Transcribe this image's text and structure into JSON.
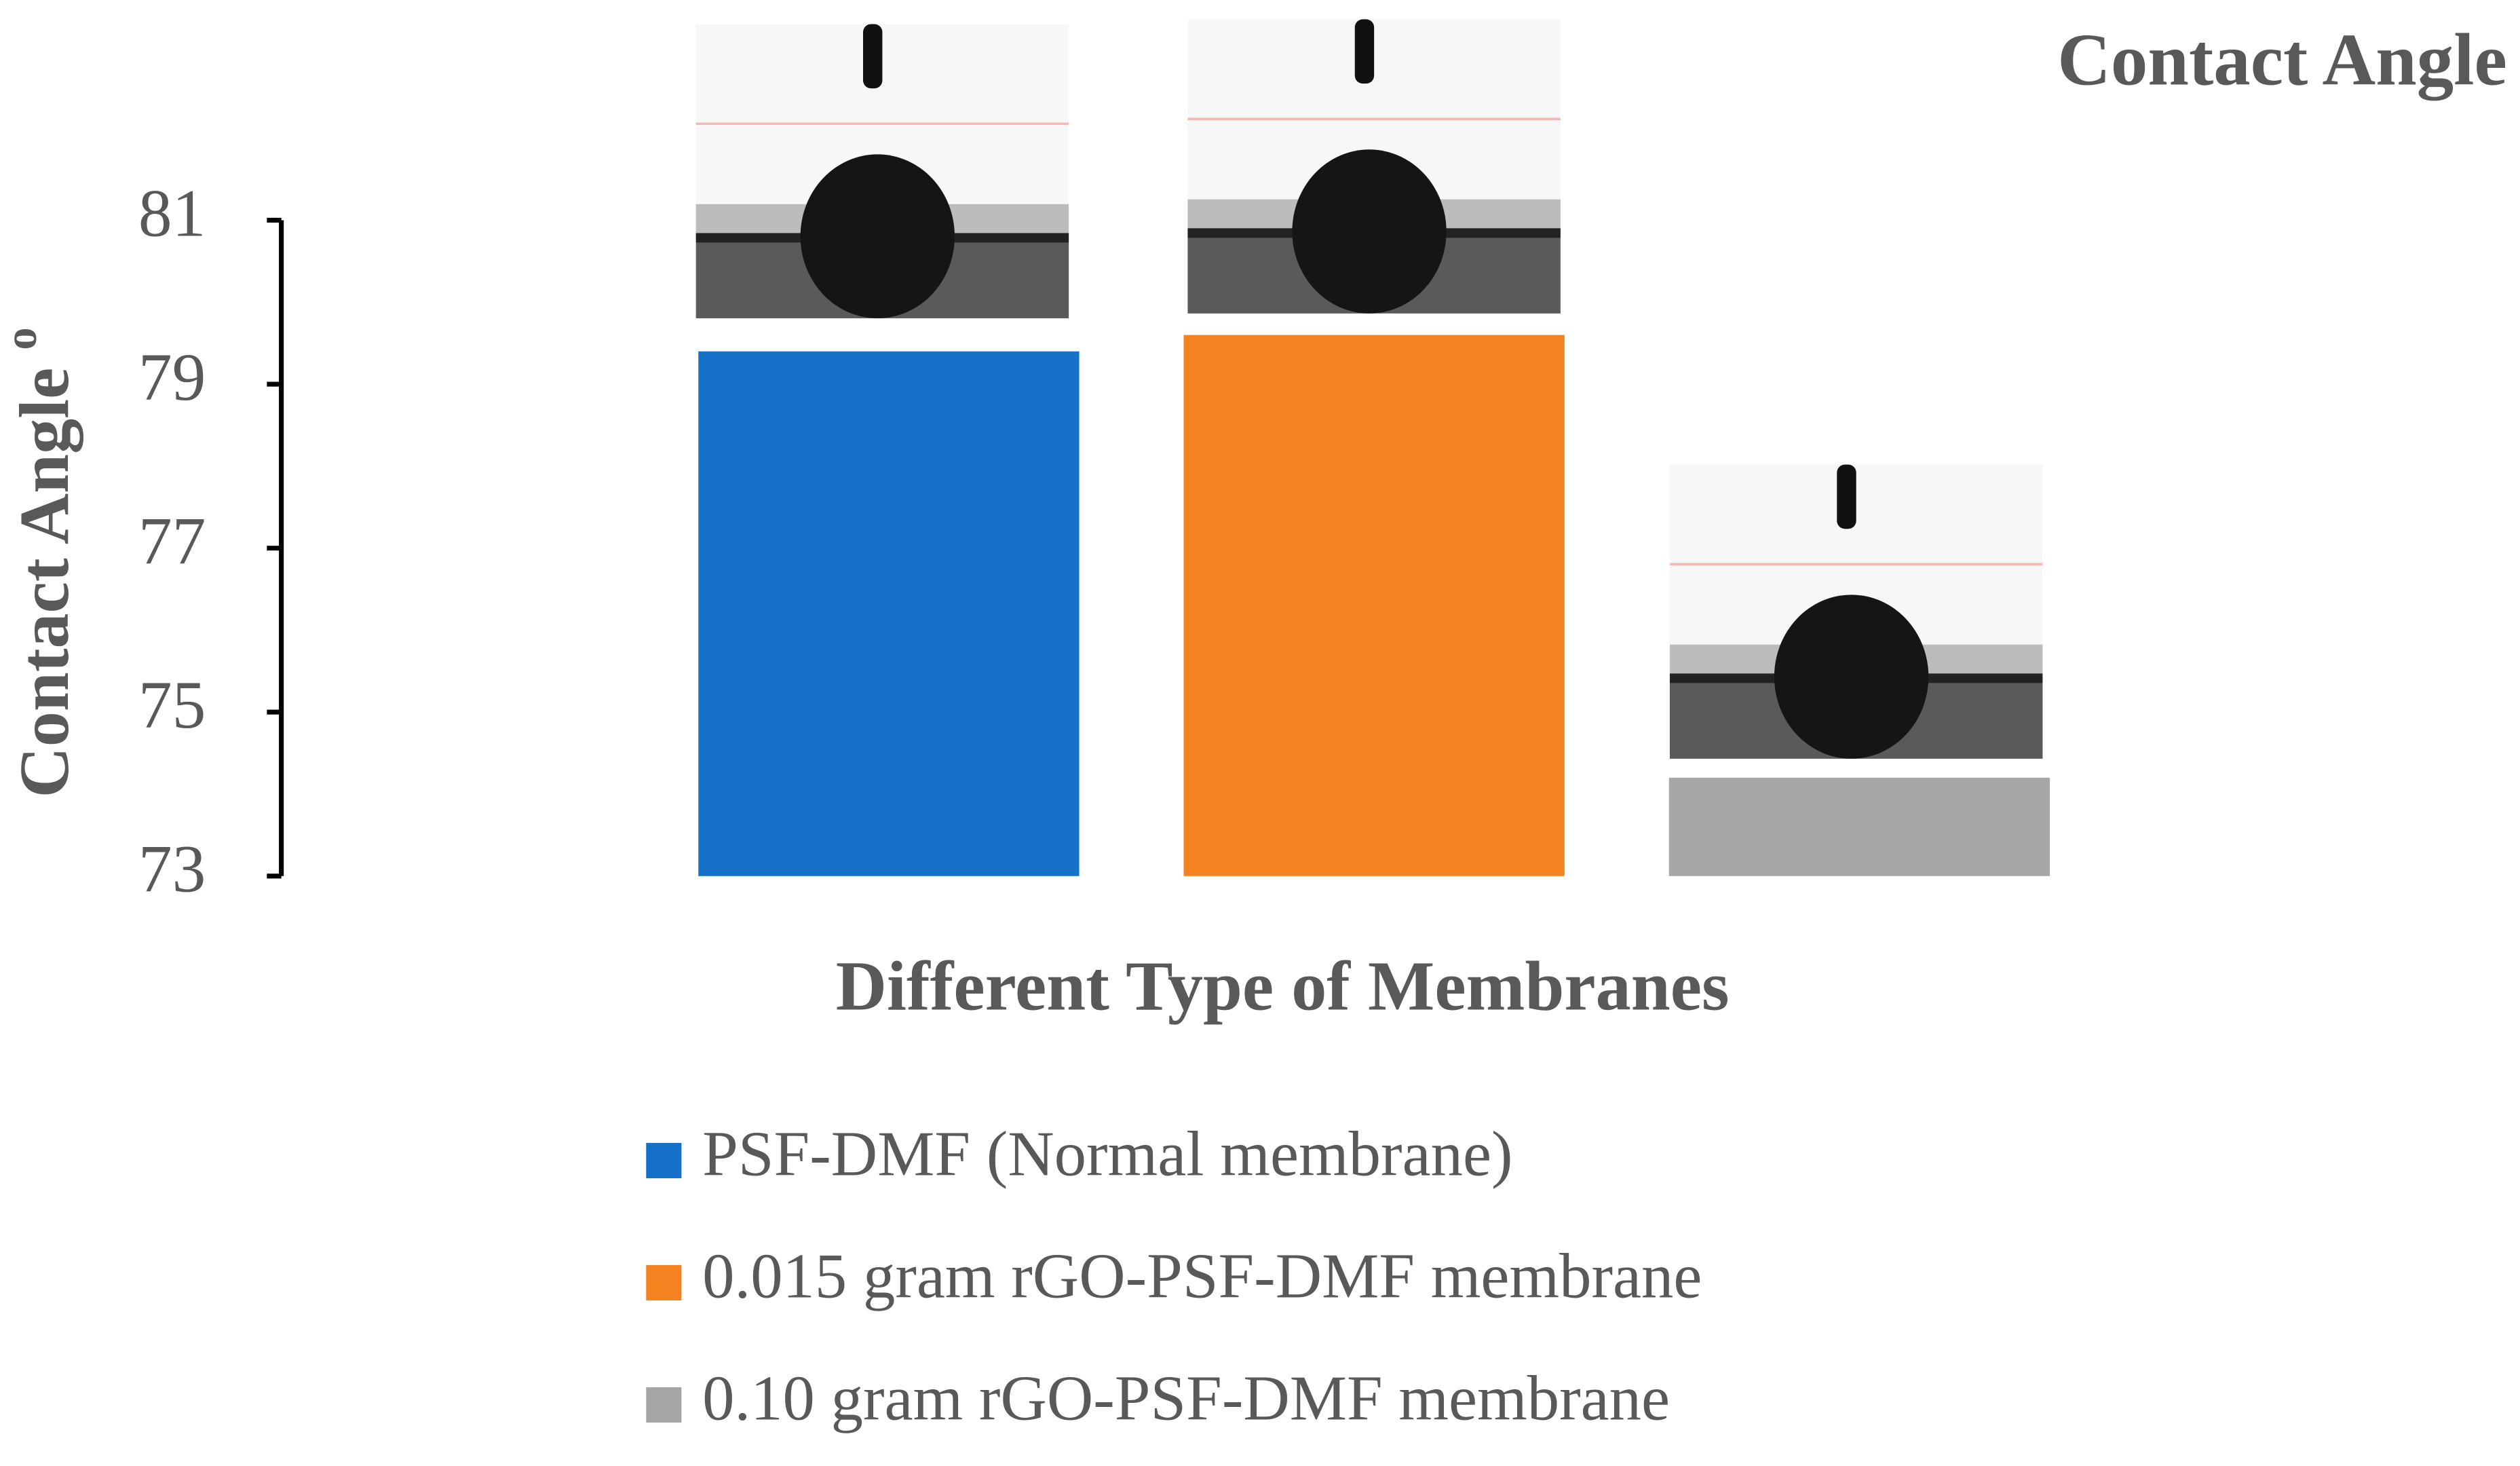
{
  "chart_data": {
    "type": "bar",
    "title": "Contact Angle",
    "x_label": "Different Type of Membranes",
    "y_label": "Contact Angle ",
    "y_unit": "o",
    "categories": [
      null,
      null,
      null
    ],
    "series": [
      {
        "name": "PSF-DMF (Normal membrane)",
        "color": "#1570c8",
        "values": [
          79.4,
          null,
          null
        ]
      },
      {
        "name": "0.015 gram rGO-PSF-DMF membrane",
        "color": "#f58220",
        "values": [
          null,
          79.6,
          null
        ]
      },
      {
        "name": "0.10 gram rGO-PSF-DMF membrane",
        "color": "#a6a6a6",
        "values": [
          null,
          null,
          74.2
        ]
      }
    ],
    "ylim": [
      73,
      81
    ],
    "yticks": [
      73,
      75,
      77,
      79,
      81
    ],
    "grid": false,
    "legend": "bottom"
  }
}
